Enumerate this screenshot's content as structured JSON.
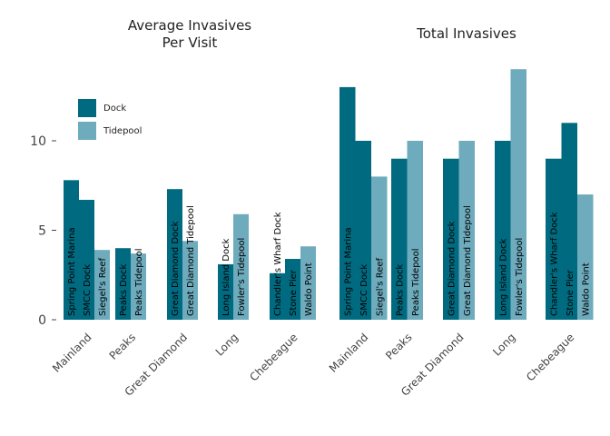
{
  "colors": {
    "Dock": "#006b80",
    "Tidepool": "#6eabbd"
  },
  "legend": [
    {
      "name": "Dock",
      "color": "#006b80"
    },
    {
      "name": "Tidepool",
      "color": "#6eabbd"
    }
  ],
  "chart_data": [
    {
      "type": "bar",
      "title": "Average Invasives\nPer Visit",
      "xlabel": "",
      "ylabel": "",
      "ylim": [
        0,
        14
      ],
      "yticks": [
        0,
        5,
        10
      ],
      "legend_position": "top-left",
      "groups": [
        {
          "name": "Mainland",
          "bars": [
            {
              "label": "Spring Point Marina",
              "type": "Dock",
              "value": 7.8
            },
            {
              "label": "SMCC Dock",
              "type": "Dock",
              "value": 6.7
            },
            {
              "label": "Siegel's Reef",
              "type": "Tidepool",
              "value": 3.9
            }
          ]
        },
        {
          "name": "Peaks",
          "bars": [
            {
              "label": "Peaks Dock",
              "type": "Dock",
              "value": 4.0
            },
            {
              "label": "Peaks Tidepool",
              "type": "Tidepool",
              "value": 3.7
            }
          ]
        },
        {
          "name": "Great Diamond",
          "bars": [
            {
              "label": "Great Diamond Dock",
              "type": "Dock",
              "value": 7.3
            },
            {
              "label": "Great Diamond Tidepool",
              "type": "Tidepool",
              "value": 4.4
            }
          ]
        },
        {
          "name": "Long",
          "bars": [
            {
              "label": "Long Island Dock",
              "type": "Dock",
              "value": 3.1
            },
            {
              "label": "Fowler's Tidepool",
              "type": "Tidepool",
              "value": 5.9
            }
          ]
        },
        {
          "name": "Chebeague",
          "bars": [
            {
              "label": "Chandler's Wharf Dock",
              "type": "Dock",
              "value": 2.6
            },
            {
              "label": "Stone Pier",
              "type": "Dock",
              "value": 3.4
            },
            {
              "label": "Waldo Point",
              "type": "Tidepool",
              "value": 4.1
            }
          ]
        }
      ]
    },
    {
      "type": "bar",
      "title": "Total Invasives",
      "xlabel": "",
      "ylabel": "",
      "ylim": [
        0,
        14
      ],
      "groups": [
        {
          "name": "Mainland",
          "bars": [
            {
              "label": "Spring Point Marina",
              "type": "Dock",
              "value": 13
            },
            {
              "label": "SMCC Dock",
              "type": "Dock",
              "value": 10
            },
            {
              "label": "Siegel's Reef",
              "type": "Tidepool",
              "value": 8
            }
          ]
        },
        {
          "name": "Peaks",
          "bars": [
            {
              "label": "Peaks Dock",
              "type": "Dock",
              "value": 9
            },
            {
              "label": "Peaks Tidepool",
              "type": "Tidepool",
              "value": 10
            }
          ]
        },
        {
          "name": "Great Diamond",
          "bars": [
            {
              "label": "Great Diamond Dock",
              "type": "Dock",
              "value": 9
            },
            {
              "label": "Great Diamond Tidepool",
              "type": "Tidepool",
              "value": 10
            }
          ]
        },
        {
          "name": "Long",
          "bars": [
            {
              "label": "Long Island Dock",
              "type": "Dock",
              "value": 10
            },
            {
              "label": "Fowler's Tidepool",
              "type": "Tidepool",
              "value": 14
            }
          ]
        },
        {
          "name": "Chebeague",
          "bars": [
            {
              "label": "Chandler's Wharf Dock",
              "type": "Dock",
              "value": 9
            },
            {
              "label": "Stone Pier",
              "type": "Dock",
              "value": 11
            },
            {
              "label": "Waldo Point",
              "type": "Tidepool",
              "value": 7
            }
          ]
        }
      ]
    }
  ]
}
